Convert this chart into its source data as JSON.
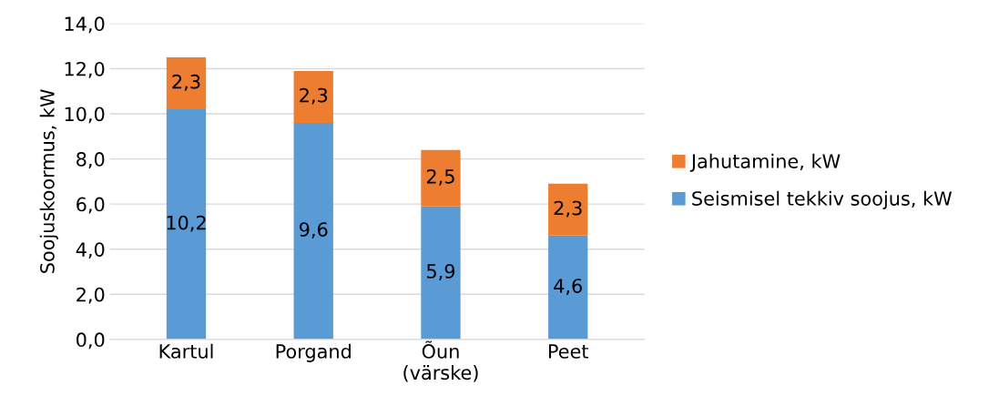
{
  "chart_data": {
    "type": "bar",
    "stacked": true,
    "ylabel": "Soojuskoormus, kW",
    "categories": [
      "Kartul",
      "Porgand",
      "Õun\n(värske)",
      "Peet"
    ],
    "series": [
      {
        "name": "Seismisel tekkiv soojus, kW",
        "color": "#5b9bd5",
        "values": [
          10.2,
          9.6,
          5.9,
          4.6
        ],
        "value_labels": [
          "10,2",
          "9,6",
          "5,9",
          "4,6"
        ]
      },
      {
        "name": "Jahutamine, kW",
        "color": "#ed7d31",
        "values": [
          2.3,
          2.3,
          2.5,
          2.3
        ],
        "value_labels": [
          "2,3",
          "2,3",
          "2,5",
          "2,3"
        ]
      }
    ],
    "ylim": [
      0,
      14
    ],
    "yticks": [
      {
        "value": 0,
        "label": "0,0"
      },
      {
        "value": 2,
        "label": "2,0"
      },
      {
        "value": 4,
        "label": "4,0"
      },
      {
        "value": 6,
        "label": "6,0"
      },
      {
        "value": 8,
        "label": "8,0"
      },
      {
        "value": 10,
        "label": "10,0"
      },
      {
        "value": 12,
        "label": "12,0"
      },
      {
        "value": 14,
        "label": "14,0"
      }
    ],
    "grid": "y",
    "legend": "right"
  }
}
